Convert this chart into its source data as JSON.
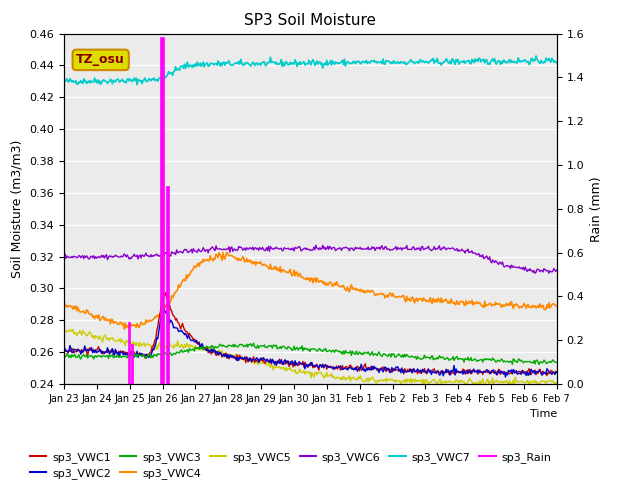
{
  "title": "SP3 Soil Moisture",
  "ylabel_left": "Soil Moisture (m3/m3)",
  "ylabel_right": "Rain (mm)",
  "xlabel": "Time",
  "ylim_left": [
    0.24,
    0.46
  ],
  "ylim_right": [
    0.0,
    1.6
  ],
  "background_color": "#ebebeb",
  "annotation_text": "TZ_osu",
  "annotation_facecolor": "#dddd00",
  "annotation_edgecolor": "#cc8800",
  "annotation_text_color": "#880000",
  "x_tick_labels": [
    "Jan 23",
    "Jan 24",
    "Jan 25",
    "Jan 26",
    "Jan 27",
    "Jan 28",
    "Jan 29",
    "Jan 30",
    "Jan 31",
    "Feb 1",
    "Feb 2",
    "Feb 3",
    "Feb 4",
    "Feb 5",
    "Feb 6",
    "Feb 7"
  ],
  "series_colors": {
    "sp3_VWC1": "#cc0000",
    "sp3_VWC2": "#0000cc",
    "sp3_VWC3": "#00aa00",
    "sp3_VWC4": "#ff8800",
    "sp3_VWC5": "#cccc00",
    "sp3_VWC6": "#8800cc",
    "sp3_VWC7": "#00cccc",
    "sp3_Rain": "#ff00ff"
  },
  "n_points": 500
}
